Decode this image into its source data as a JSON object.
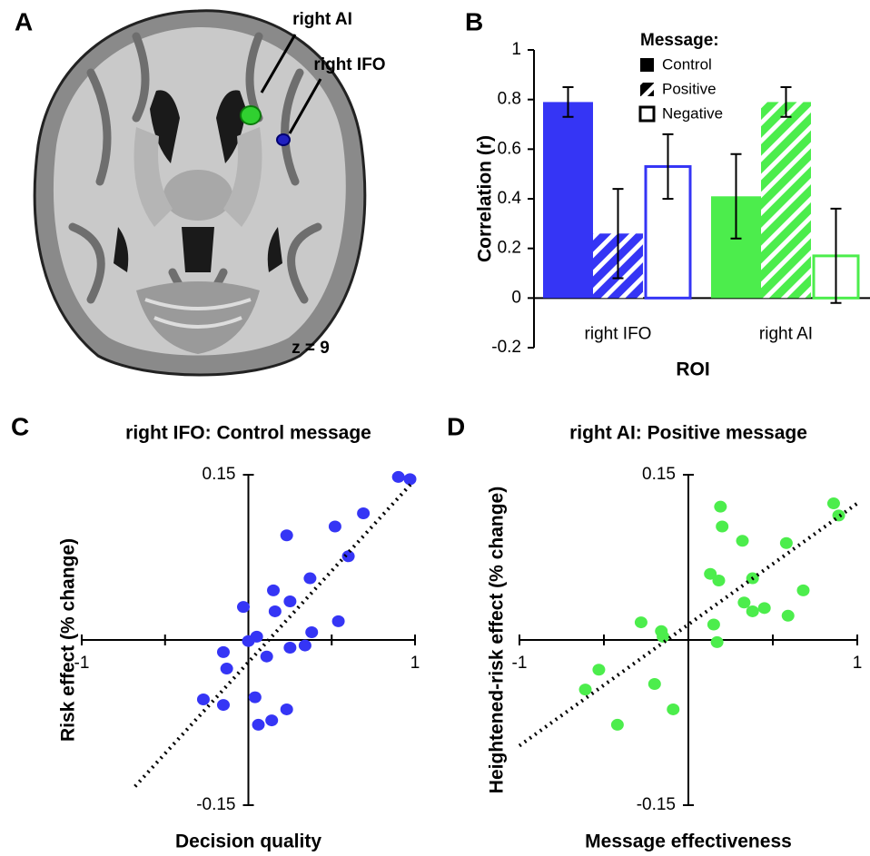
{
  "panel_a": {
    "label": "A",
    "region_labels": [
      "right AI",
      "right IFO"
    ],
    "slice": "z = 9"
  },
  "chart_data": [
    {
      "type": "bar",
      "panel_label": "B",
      "categories": [
        "right IFO",
        "right AI"
      ],
      "category_colors": [
        "#3535f5",
        "#4ced4c"
      ],
      "series": [
        {
          "name": "Control",
          "style": "solid",
          "values": [
            0.79,
            0.41
          ],
          "errors": [
            0.06,
            0.17
          ]
        },
        {
          "name": "Positive",
          "style": "hatch",
          "values": [
            0.26,
            0.79
          ],
          "errors": [
            0.18,
            0.06
          ]
        },
        {
          "name": "Negative",
          "style": "outline",
          "values": [
            0.53,
            0.17
          ],
          "errors": [
            0.13,
            0.19
          ]
        }
      ],
      "legend_title": "Message:",
      "xlabel": "ROI",
      "ylabel": "Correlation (r)",
      "ylim": [
        -0.2,
        1
      ],
      "yticks": [
        -0.2,
        0,
        0.2,
        0.4,
        0.6,
        0.8,
        1
      ]
    },
    {
      "type": "scatter",
      "panel_label": "C",
      "title": "right IFO: Control message",
      "xlabel": "Decision quality",
      "ylabel": "Risk effect (% change)",
      "color": "#3535f5",
      "x": [
        0.9,
        0.97,
        0.69,
        0.52,
        0.23,
        0.6,
        0.37,
        0.15,
        0.25,
        -0.03,
        0.16,
        0.54,
        0.05,
        0.38,
        0.0,
        0.25,
        0.34,
        0.11,
        -0.15,
        -0.13,
        0.04,
        -0.27,
        -0.15,
        0.23,
        0.06,
        0.14
      ],
      "y": [
        0.148,
        0.146,
        0.115,
        0.103,
        0.095,
        0.076,
        0.056,
        0.045,
        0.035,
        0.03,
        0.026,
        0.017,
        0.003,
        0.007,
        -0.001,
        -0.007,
        -0.005,
        -0.015,
        -0.011,
        -0.026,
        -0.052,
        -0.054,
        -0.059,
        -0.063,
        -0.077,
        -0.073
      ],
      "trendline": {
        "x": [
          -0.68,
          0.99
        ],
        "y": [
          -0.133,
          0.144
        ]
      },
      "xlim": [
        -1,
        1
      ],
      "ylim": [
        -0.15,
        0.15
      ],
      "xticks": [
        -1,
        1
      ],
      "minor_xticks": [
        -0.5,
        0.5
      ],
      "yticks": [
        -0.15,
        0.15
      ]
    },
    {
      "type": "scatter",
      "panel_label": "D",
      "title": "right AI: Positive message",
      "xlabel": "Message effectiveness",
      "ylabel": "Heightened-risk effect (% change)",
      "color": "#4ced4c",
      "x": [
        0.86,
        0.89,
        0.19,
        0.2,
        0.32,
        0.58,
        0.13,
        0.18,
        0.38,
        0.68,
        0.33,
        0.45,
        0.38,
        0.59,
        0.15,
        -0.28,
        -0.16,
        -0.15,
        0.17,
        -0.53,
        -0.61,
        -0.2,
        -0.09,
        -0.42
      ],
      "y": [
        0.124,
        0.113,
        0.121,
        0.103,
        0.09,
        0.088,
        0.06,
        0.054,
        0.056,
        0.045,
        0.034,
        0.029,
        0.026,
        0.022,
        0.014,
        0.016,
        0.008,
        0.003,
        -0.002,
        -0.027,
        -0.045,
        -0.04,
        -0.063,
        -0.077
      ],
      "trendline": {
        "x": [
          -1,
          1
        ],
        "y": [
          -0.096,
          0.124
        ]
      },
      "xlim": [
        -1,
        1
      ],
      "ylim": [
        -0.15,
        0.15
      ],
      "xticks": [
        -1,
        1
      ],
      "minor_xticks": [
        -0.5,
        0.5
      ],
      "yticks": [
        -0.15,
        0.15
      ]
    }
  ]
}
